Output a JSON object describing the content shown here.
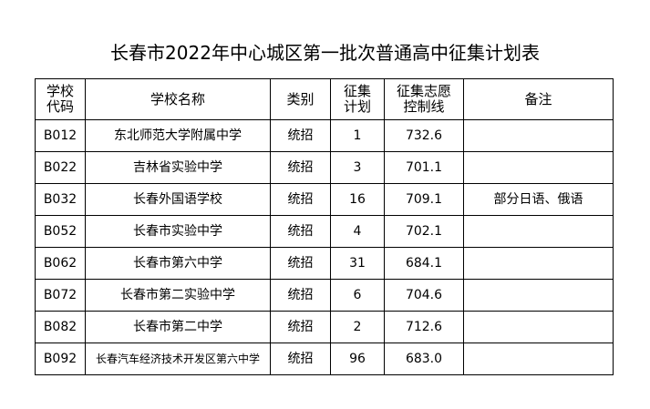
{
  "title": "长春市2022年中心城区第一批次普通高中征集计划表",
  "headers": {
    "code": [
      "学校",
      "代码"
    ],
    "name": "学校名称",
    "type": "类别",
    "plan": [
      "征集",
      "计划"
    ],
    "score": [
      "征集志愿",
      "控制线"
    ],
    "note": "备注"
  },
  "rows": [
    {
      "code": "B012",
      "name": "东北师范大学附属中学",
      "type": "统招",
      "plan": "1",
      "score": "732.6",
      "note": ""
    },
    {
      "code": "B022",
      "name": "吉林省实验中学",
      "type": "统招",
      "plan": "3",
      "score": "701.1",
      "note": ""
    },
    {
      "code": "B032",
      "name": "长春外国语学校",
      "type": "统招",
      "plan": "16",
      "score": "709.1",
      "note": "部分日语、俄语"
    },
    {
      "code": "B052",
      "name": "长春市实验中学",
      "type": "统招",
      "plan": "4",
      "score": "702.1",
      "note": ""
    },
    {
      "code": "B062",
      "name": "长春市第六中学",
      "type": "统招",
      "plan": "31",
      "score": "684.1",
      "note": ""
    },
    {
      "code": "B072",
      "name": "长春市第二实验中学",
      "type": "统招",
      "plan": "6",
      "score": "704.6",
      "note": ""
    },
    {
      "code": "B082",
      "name": "长春市第二中学",
      "type": "统招",
      "plan": "2",
      "score": "712.6",
      "note": ""
    },
    {
      "code": "B092",
      "name": "长春汽车经济技术开发区第六中学",
      "type": "统招",
      "plan": "96",
      "score": "683.0",
      "note": ""
    }
  ]
}
